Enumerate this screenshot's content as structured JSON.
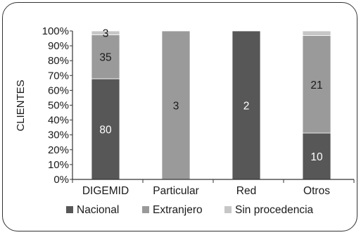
{
  "chart_data": {
    "type": "bar",
    "stacked": "percent",
    "categories": [
      "DIGEMID",
      "Particular",
      "Red",
      "Otros"
    ],
    "series": [
      {
        "name": "Nacional",
        "color": "#575757",
        "values": [
          80,
          0,
          2,
          10
        ]
      },
      {
        "name": "Extranjero",
        "color": "#9a9a9a",
        "values": [
          35,
          3,
          0,
          21
        ]
      },
      {
        "name": "Sin procedencia",
        "color": "#c6c6c6",
        "values": [
          3,
          0,
          0,
          1
        ]
      }
    ],
    "data_labels": [
      {
        "category": "DIGEMID",
        "series": "Nacional",
        "text": "80"
      },
      {
        "category": "DIGEMID",
        "series": "Extranjero",
        "text": "35"
      },
      {
        "category": "DIGEMID",
        "series": "Sin procedencia",
        "text": "3"
      },
      {
        "category": "Particular",
        "series": "Extranjero",
        "text": "3"
      },
      {
        "category": "Red",
        "series": "Nacional",
        "text": "2"
      },
      {
        "category": "Otros",
        "series": "Nacional",
        "text": "10"
      },
      {
        "category": "Otros",
        "series": "Extranjero",
        "text": "21"
      }
    ],
    "ylabel": "CLIENTES",
    "yticks": [
      "0%",
      "10%",
      "20%",
      "30%",
      "40%",
      "50%",
      "60%",
      "70%",
      "80%",
      "90%",
      "100%"
    ],
    "ylim": [
      0,
      100
    ],
    "grid": false,
    "legend_position": "bottom"
  }
}
